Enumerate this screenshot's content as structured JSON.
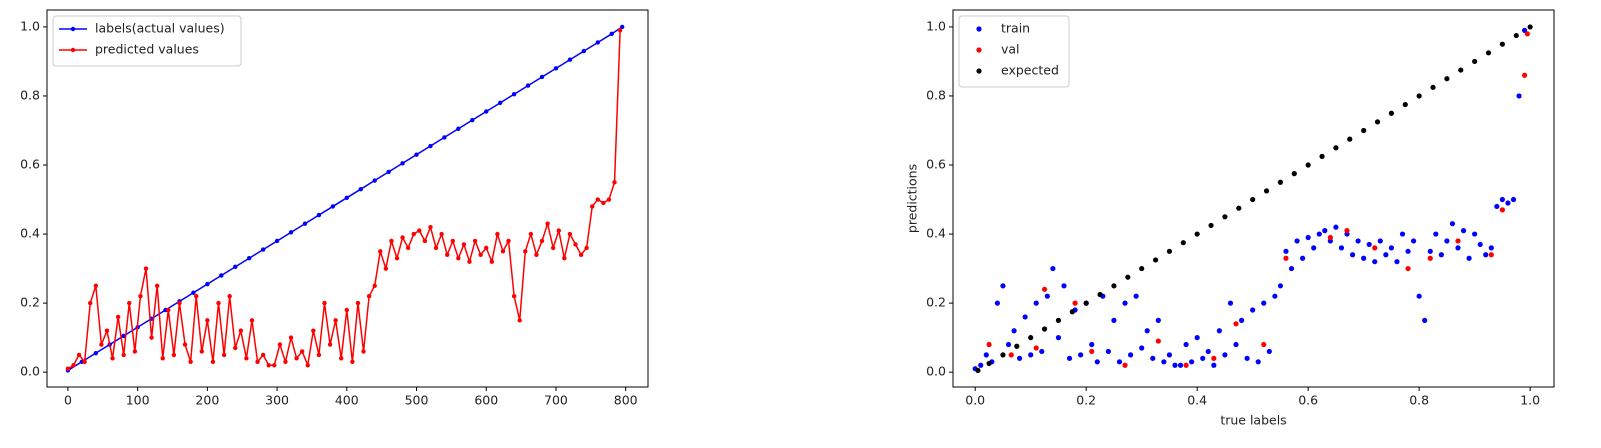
{
  "chart_data": [
    {
      "type": "line",
      "xlim": [
        -30,
        832
      ],
      "ylim": [
        -0.043,
        1.049
      ],
      "xticks": [
        0,
        100,
        200,
        300,
        400,
        500,
        600,
        700,
        800
      ],
      "yticks": [
        {
          "value": 0,
          "label": "0.0"
        },
        {
          "value": 0.2,
          "label": "0.2"
        },
        {
          "value": 0.4,
          "label": "0.4"
        },
        {
          "value": 0.6,
          "label": "0.6"
        },
        {
          "value": 0.8,
          "label": "0.8"
        },
        {
          "value": 1,
          "label": "1.0"
        }
      ],
      "legend": "upper left",
      "series": [
        {
          "name": "labels(actual values)",
          "color": "#0000ff",
          "x": [
            0,
            20,
            40,
            60,
            80,
            100,
            120,
            140,
            160,
            180,
            200,
            220,
            240,
            260,
            280,
            300,
            320,
            340,
            360,
            380,
            400,
            420,
            440,
            460,
            480,
            500,
            520,
            540,
            560,
            580,
            600,
            620,
            640,
            660,
            680,
            700,
            720,
            740,
            760,
            780,
            795
          ],
          "values": [
            0.005,
            0.03,
            0.055,
            0.08,
            0.105,
            0.13,
            0.155,
            0.18,
            0.205,
            0.23,
            0.255,
            0.28,
            0.305,
            0.33,
            0.355,
            0.38,
            0.405,
            0.43,
            0.455,
            0.48,
            0.505,
            0.53,
            0.555,
            0.58,
            0.605,
            0.63,
            0.655,
            0.68,
            0.705,
            0.73,
            0.755,
            0.78,
            0.805,
            0.83,
            0.855,
            0.88,
            0.905,
            0.93,
            0.955,
            0.98,
            1.0
          ]
        },
        {
          "name": "predicted values",
          "color": "#ff0000",
          "x": [
            0,
            8,
            16,
            24,
            32,
            40,
            48,
            56,
            64,
            72,
            80,
            88,
            96,
            104,
            112,
            120,
            128,
            136,
            144,
            152,
            160,
            168,
            176,
            184,
            192,
            200,
            208,
            216,
            224,
            232,
            240,
            248,
            256,
            264,
            272,
            280,
            288,
            296,
            304,
            312,
            320,
            328,
            336,
            344,
            352,
            360,
            368,
            376,
            384,
            392,
            400,
            408,
            416,
            424,
            432,
            440,
            448,
            456,
            464,
            472,
            480,
            488,
            496,
            504,
            512,
            520,
            528,
            536,
            544,
            552,
            560,
            568,
            576,
            584,
            592,
            600,
            608,
            616,
            624,
            632,
            640,
            648,
            656,
            664,
            672,
            680,
            688,
            696,
            704,
            712,
            720,
            728,
            736,
            744,
            752,
            760,
            768,
            776,
            784,
            792
          ],
          "values": [
            0.01,
            0.02,
            0.05,
            0.03,
            0.2,
            0.25,
            0.08,
            0.12,
            0.04,
            0.16,
            0.05,
            0.2,
            0.06,
            0.22,
            0.3,
            0.1,
            0.25,
            0.04,
            0.18,
            0.05,
            0.2,
            0.08,
            0.03,
            0.22,
            0.06,
            0.15,
            0.03,
            0.2,
            0.05,
            0.22,
            0.07,
            0.12,
            0.04,
            0.15,
            0.03,
            0.05,
            0.02,
            0.02,
            0.08,
            0.03,
            0.1,
            0.04,
            0.06,
            0.02,
            0.12,
            0.05,
            0.2,
            0.08,
            0.15,
            0.04,
            0.18,
            0.03,
            0.2,
            0.06,
            0.22,
            0.25,
            0.35,
            0.3,
            0.38,
            0.33,
            0.39,
            0.36,
            0.4,
            0.41,
            0.38,
            0.42,
            0.36,
            0.4,
            0.34,
            0.38,
            0.33,
            0.37,
            0.32,
            0.38,
            0.34,
            0.36,
            0.32,
            0.4,
            0.35,
            0.38,
            0.22,
            0.15,
            0.35,
            0.4,
            0.34,
            0.38,
            0.43,
            0.36,
            0.41,
            0.33,
            0.4,
            0.37,
            0.34,
            0.36,
            0.48,
            0.5,
            0.49,
            0.5,
            0.55,
            0.99
          ]
        }
      ]
    },
    {
      "type": "scatter",
      "xlabel": "true labels",
      "ylabel": "predictions",
      "xlim": [
        -0.04,
        1.043
      ],
      "ylim": [
        -0.043,
        1.049
      ],
      "xticks": [
        {
          "value": 0,
          "label": "0.0"
        },
        {
          "value": 0.2,
          "label": "0.2"
        },
        {
          "value": 0.4,
          "label": "0.4"
        },
        {
          "value": 0.6,
          "label": "0.6"
        },
        {
          "value": 0.8,
          "label": "0.8"
        },
        {
          "value": 1,
          "label": "1.0"
        }
      ],
      "yticks": [
        {
          "value": 0,
          "label": "0.0"
        },
        {
          "value": 0.2,
          "label": "0.2"
        },
        {
          "value": 0.4,
          "label": "0.4"
        },
        {
          "value": 0.6,
          "label": "0.6"
        },
        {
          "value": 0.8,
          "label": "0.8"
        },
        {
          "value": 1,
          "label": "1.0"
        }
      ],
      "legend": "upper left",
      "series": [
        {
          "name": "train",
          "color": "#0000ff",
          "x": [
            0.0,
            0.01,
            0.02,
            0.03,
            0.04,
            0.05,
            0.06,
            0.07,
            0.08,
            0.09,
            0.1,
            0.11,
            0.12,
            0.13,
            0.14,
            0.15,
            0.16,
            0.17,
            0.18,
            0.19,
            0.2,
            0.21,
            0.22,
            0.23,
            0.24,
            0.25,
            0.26,
            0.27,
            0.28,
            0.29,
            0.3,
            0.31,
            0.32,
            0.33,
            0.34,
            0.35,
            0.36,
            0.37,
            0.38,
            0.39,
            0.4,
            0.41,
            0.42,
            0.43,
            0.44,
            0.45,
            0.46,
            0.47,
            0.48,
            0.49,
            0.5,
            0.51,
            0.52,
            0.53,
            0.54,
            0.55,
            0.56,
            0.57,
            0.58,
            0.59,
            0.6,
            0.61,
            0.62,
            0.63,
            0.64,
            0.65,
            0.66,
            0.67,
            0.68,
            0.69,
            0.7,
            0.71,
            0.72,
            0.73,
            0.74,
            0.75,
            0.76,
            0.77,
            0.78,
            0.79,
            0.8,
            0.81,
            0.82,
            0.83,
            0.84,
            0.85,
            0.86,
            0.87,
            0.88,
            0.89,
            0.9,
            0.91,
            0.92,
            0.93,
            0.94,
            0.95,
            0.96,
            0.97,
            0.98,
            0.99
          ],
          "values": [
            0.01,
            0.02,
            0.05,
            0.03,
            0.2,
            0.25,
            0.08,
            0.12,
            0.04,
            0.16,
            0.05,
            0.2,
            0.06,
            0.22,
            0.3,
            0.1,
            0.25,
            0.04,
            0.18,
            0.05,
            0.2,
            0.08,
            0.03,
            0.22,
            0.06,
            0.15,
            0.03,
            0.2,
            0.05,
            0.22,
            0.07,
            0.12,
            0.04,
            0.15,
            0.03,
            0.05,
            0.02,
            0.02,
            0.08,
            0.03,
            0.1,
            0.04,
            0.06,
            0.02,
            0.12,
            0.05,
            0.2,
            0.08,
            0.15,
            0.04,
            0.18,
            0.03,
            0.2,
            0.06,
            0.22,
            0.25,
            0.35,
            0.3,
            0.38,
            0.33,
            0.39,
            0.36,
            0.4,
            0.41,
            0.38,
            0.42,
            0.36,
            0.4,
            0.34,
            0.38,
            0.33,
            0.37,
            0.32,
            0.38,
            0.34,
            0.36,
            0.32,
            0.4,
            0.35,
            0.38,
            0.22,
            0.15,
            0.35,
            0.4,
            0.34,
            0.38,
            0.43,
            0.36,
            0.41,
            0.33,
            0.4,
            0.37,
            0.34,
            0.36,
            0.48,
            0.5,
            0.49,
            0.5,
            0.8,
            0.99
          ]
        },
        {
          "name": "val",
          "color": "#ff0000",
          "x": [
            0.025,
            0.065,
            0.11,
            0.125,
            0.18,
            0.21,
            0.27,
            0.33,
            0.38,
            0.43,
            0.47,
            0.52,
            0.56,
            0.64,
            0.67,
            0.72,
            0.78,
            0.82,
            0.87,
            0.93,
            0.95,
            0.99,
            0.995
          ],
          "values": [
            0.08,
            0.05,
            0.07,
            0.24,
            0.2,
            0.06,
            0.02,
            0.09,
            0.02,
            0.04,
            0.14,
            0.08,
            0.33,
            0.39,
            0.41,
            0.36,
            0.3,
            0.33,
            0.38,
            0.34,
            0.47,
            0.86,
            0.98
          ]
        },
        {
          "name": "expected",
          "color": "#000000",
          "x": [
            0.005,
            0.025,
            0.05,
            0.075,
            0.1,
            0.125,
            0.15,
            0.175,
            0.2,
            0.225,
            0.25,
            0.275,
            0.3,
            0.325,
            0.35,
            0.375,
            0.4,
            0.425,
            0.45,
            0.475,
            0.5,
            0.525,
            0.55,
            0.575,
            0.6,
            0.625,
            0.65,
            0.675,
            0.7,
            0.725,
            0.75,
            0.775,
            0.8,
            0.825,
            0.85,
            0.875,
            0.9,
            0.925,
            0.95,
            0.975,
            1.0
          ],
          "values": [
            0.005,
            0.025,
            0.05,
            0.075,
            0.1,
            0.125,
            0.15,
            0.175,
            0.2,
            0.225,
            0.25,
            0.275,
            0.3,
            0.325,
            0.35,
            0.375,
            0.4,
            0.425,
            0.45,
            0.475,
            0.5,
            0.525,
            0.55,
            0.575,
            0.6,
            0.625,
            0.65,
            0.675,
            0.7,
            0.725,
            0.75,
            0.775,
            0.8,
            0.825,
            0.85,
            0.875,
            0.9,
            0.925,
            0.95,
            0.975,
            1.0
          ]
        }
      ]
    }
  ]
}
